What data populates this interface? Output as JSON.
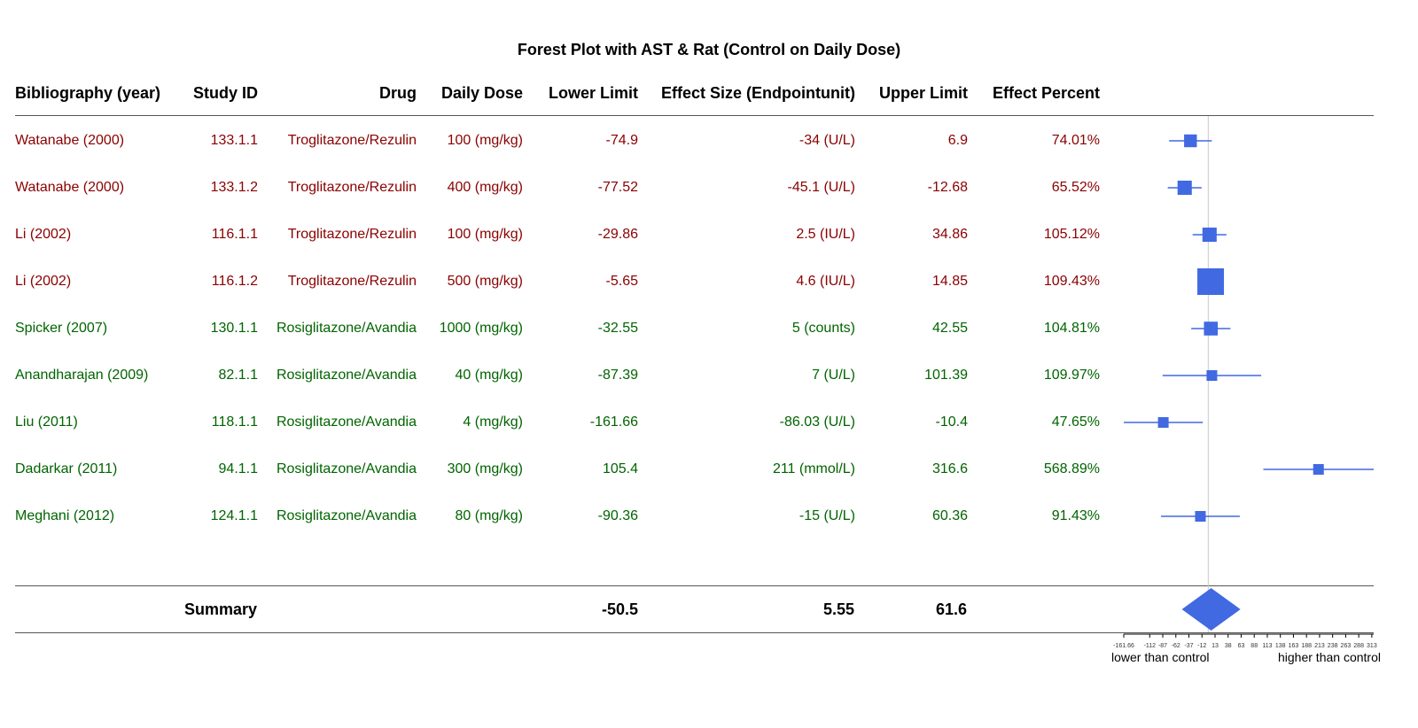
{
  "colors": {
    "troglitazone": "#8b0000",
    "rosiglitazone": "#006400",
    "marker": "#4169e1",
    "refline": "#c8c8c8",
    "rule": "#555555"
  },
  "table": {
    "headers": [
      "Bibliography (year)",
      "Study ID",
      "Drug",
      "Daily Dose",
      "Lower Limit",
      "Effect Size (Endpointunit)",
      "Upper Limit",
      "Effect Percent"
    ],
    "summary": {
      "label": "Summary",
      "lower": "-50.5",
      "effect": "5.55",
      "upper": "61.6"
    }
  },
  "chart_data": {
    "type": "forest",
    "title": "Forest Plot with AST & Rat (Control on Daily Dose)",
    "x_range": [
      -161.66,
      316.6
    ],
    "reference_line": 0,
    "x_ticks": [
      "-161.66",
      "-112",
      "-87",
      "-62",
      "-37",
      "-12",
      "13",
      "38",
      "63",
      "88",
      "113",
      "138",
      "163",
      "188",
      "213",
      "238",
      "263",
      "288",
      "313"
    ],
    "x_tick_values": [
      -161.66,
      -112,
      -87,
      -62,
      -37,
      -12,
      13,
      38,
      63,
      88,
      113,
      138,
      163,
      188,
      213,
      238,
      263,
      288,
      313
    ],
    "axis_left_label": "lower than control",
    "axis_right_label": "higher than control",
    "studies": [
      {
        "bib": "Watanabe (2000)",
        "id": "133.1.1",
        "drug": "Troglitazone/Rezulin",
        "dose": "100 (mg/kg)",
        "lower": -74.9,
        "lower_text": "-74.9",
        "effect": -34,
        "effect_text": "-34 (U/L)",
        "upper": 6.9,
        "upper_text": "6.9",
        "percent": "74.01%",
        "group": "troglitazone",
        "weight": 0.35
      },
      {
        "bib": "Watanabe (2000)",
        "id": "133.1.2",
        "drug": "Troglitazone/Rezulin",
        "dose": "400 (mg/kg)",
        "lower": -77.52,
        "lower_text": "-77.52",
        "effect": -45.1,
        "effect_text": "-45.1 (U/L)",
        "upper": -12.68,
        "upper_text": "-12.68",
        "percent": "65.52%",
        "group": "troglitazone",
        "weight": 0.42
      },
      {
        "bib": "Li (2002)",
        "id": "116.1.1",
        "drug": "Troglitazone/Rezulin",
        "dose": "100 (mg/kg)",
        "lower": -29.86,
        "lower_text": "-29.86",
        "effect": 2.5,
        "effect_text": "2.5 (IU/L)",
        "upper": 34.86,
        "upper_text": "34.86",
        "percent": "105.12%",
        "group": "troglitazone",
        "weight": 0.42
      },
      {
        "bib": "Li (2002)",
        "id": "116.1.2",
        "drug": "Troglitazone/Rezulin",
        "dose": "500 (mg/kg)",
        "lower": -5.65,
        "lower_text": "-5.65",
        "effect": 4.6,
        "effect_text": "4.6 (IU/L)",
        "upper": 14.85,
        "upper_text": "14.85",
        "percent": "109.43%",
        "group": "troglitazone",
        "weight": 1.0
      },
      {
        "bib": "Spicker (2007)",
        "id": "130.1.1",
        "drug": "Rosiglitazone/Avandia",
        "dose": "1000 (mg/kg)",
        "lower": -32.55,
        "lower_text": "-32.55",
        "effect": 5,
        "effect_text": "5 (counts)",
        "upper": 42.55,
        "upper_text": "42.55",
        "percent": "104.81%",
        "group": "rosiglitazone",
        "weight": 0.4
      },
      {
        "bib": "Anandharajan (2009)",
        "id": "82.1.1",
        "drug": "Rosiglitazone/Avandia",
        "dose": "40 (mg/kg)",
        "lower": -87.39,
        "lower_text": "-87.39",
        "effect": 7,
        "effect_text": "7 (U/L)",
        "upper": 101.39,
        "upper_text": "101.39",
        "percent": "109.97%",
        "group": "rosiglitazone",
        "weight": 0.25
      },
      {
        "bib": "Liu (2011)",
        "id": "118.1.1",
        "drug": "Rosiglitazone/Avandia",
        "dose": "4 (mg/kg)",
        "lower": -161.66,
        "lower_text": "-161.66",
        "effect": -86.03,
        "effect_text": "-86.03 (U/L)",
        "upper": -10.4,
        "upper_text": "-10.4",
        "percent": "47.65%",
        "group": "rosiglitazone",
        "weight": 0.25
      },
      {
        "bib": "Dadarkar (2011)",
        "id": "94.1.1",
        "drug": "Rosiglitazone/Avandia",
        "dose": "300 (mg/kg)",
        "lower": 105.4,
        "lower_text": "105.4",
        "effect": 211,
        "effect_text": "211 (mmol/L)",
        "upper": 316.6,
        "upper_text": "316.6",
        "percent": "568.89%",
        "group": "rosiglitazone",
        "weight": 0.25
      },
      {
        "bib": "Meghani (2012)",
        "id": "124.1.1",
        "drug": "Rosiglitazone/Avandia",
        "dose": "80 (mg/kg)",
        "lower": -90.36,
        "lower_text": "-90.36",
        "effect": -15,
        "effect_text": "-15 (U/L)",
        "upper": 60.36,
        "upper_text": "60.36",
        "percent": "91.43%",
        "group": "rosiglitazone",
        "weight": 0.25
      }
    ],
    "summary": {
      "lower": -50.5,
      "effect": 5.55,
      "upper": 61.6
    }
  }
}
